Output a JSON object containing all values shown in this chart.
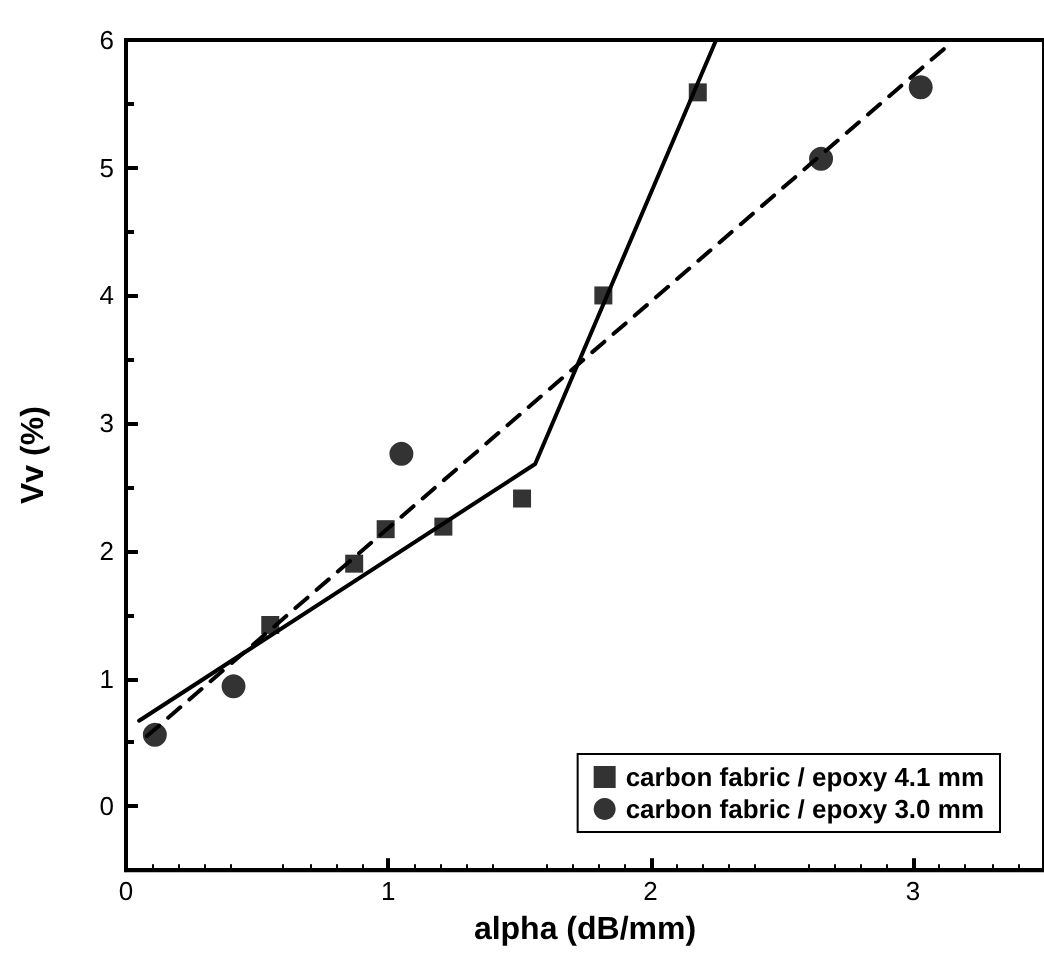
{
  "chart_data": {
    "type": "scatter",
    "xlabel": "alpha (dB/mm)",
    "ylabel": "Vv (%)",
    "xlim": [
      0,
      3.5
    ],
    "xticks": [
      0,
      1,
      2,
      3
    ],
    "ylim": [
      -0.5,
      6
    ],
    "yticks": [
      0,
      1,
      2,
      3,
      4,
      5,
      6
    ],
    "grid": false,
    "legend": "bottom right",
    "series": [
      {
        "name": "carbon fabric / epoxy 4.1 mm",
        "marker": "square",
        "color": "#000000",
        "x": [
          0.55,
          0.87,
          0.99,
          1.21,
          1.51,
          1.82,
          2.18
        ],
        "values": [
          1.42,
          1.9,
          2.17,
          2.19,
          2.41,
          4.0,
          5.59
        ]
      },
      {
        "name": "carbon fabric / epoxy 3.0 mm",
        "marker": "circle",
        "color": "#000000",
        "x": [
          0.11,
          0.41,
          1.05,
          2.65,
          3.03
        ],
        "values": [
          0.56,
          0.94,
          2.76,
          5.07,
          5.63
        ]
      },
      {
        "type": "line",
        "marker": "none",
        "line_style": "solid",
        "color": "#000000",
        "x": [
          0.05,
          1.56,
          2.25
        ],
        "values": [
          0.67,
          2.68,
          6.0
        ]
      },
      {
        "type": "line",
        "marker": "none",
        "line_style": "dashed",
        "color": "#000000",
        "x": [
          0.08,
          3.13
        ],
        "values": [
          0.55,
          5.95
        ]
      }
    ]
  }
}
